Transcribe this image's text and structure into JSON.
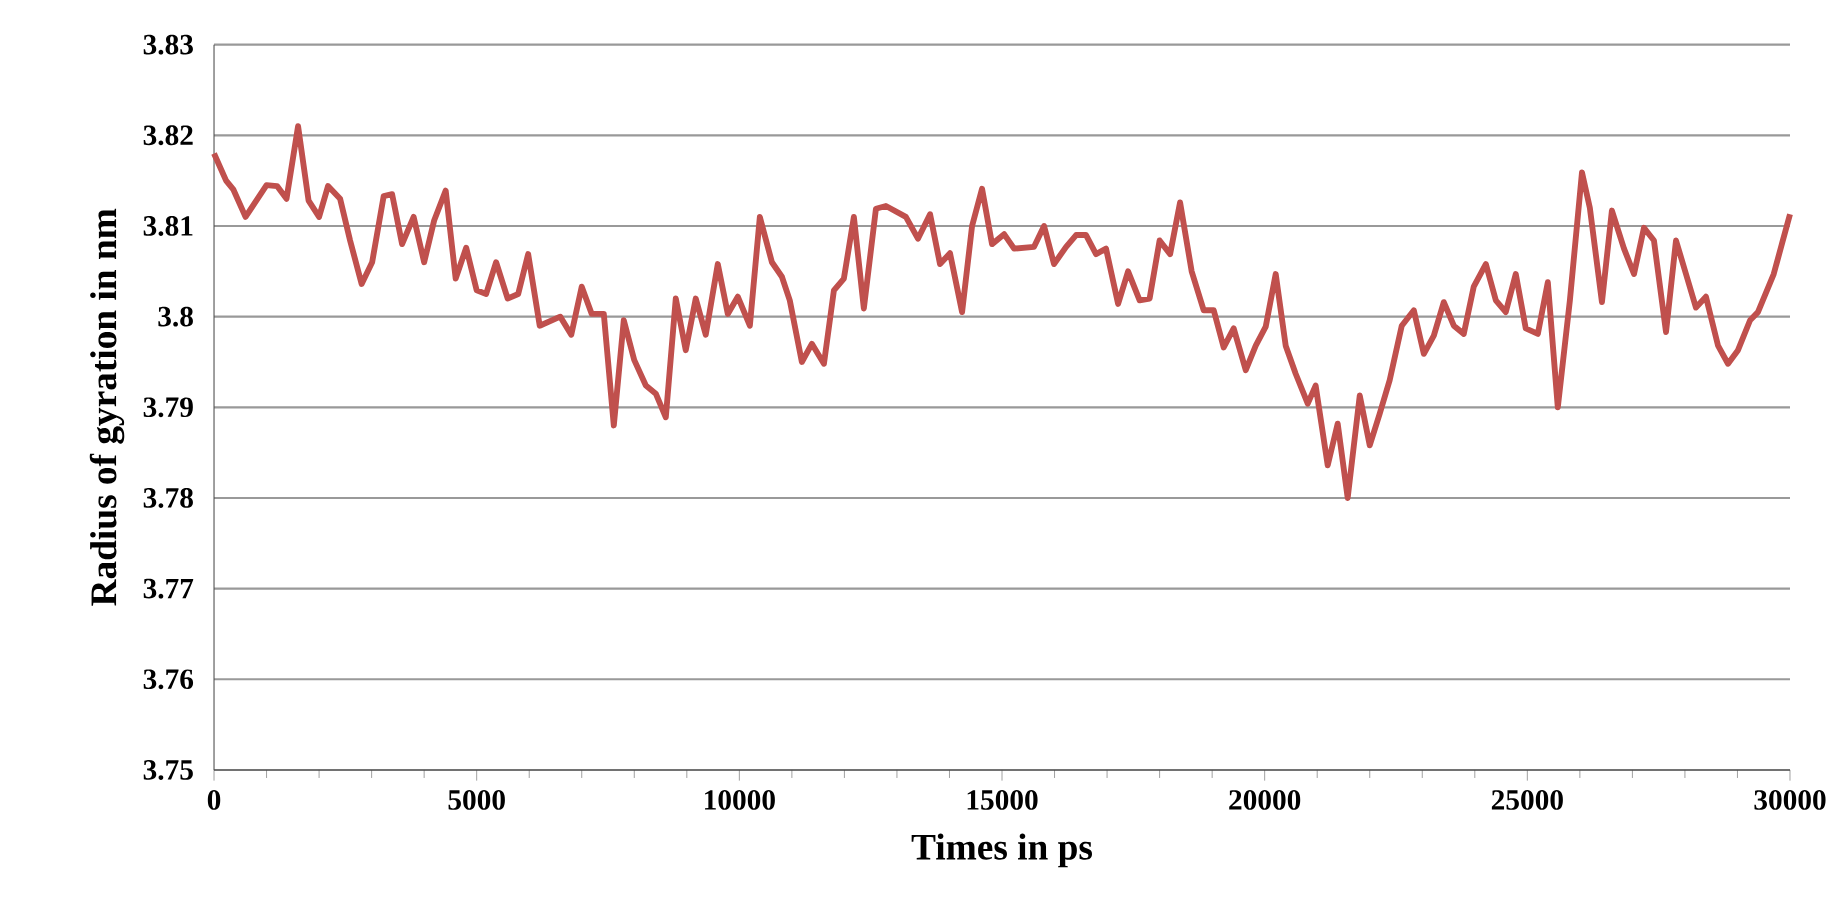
{
  "chart_data": {
    "type": "line",
    "xlabel": "Times in ps",
    "ylabel": "Radius of gyration in nm",
    "x": [
      0,
      230,
      370,
      600,
      1000,
      1200,
      1380,
      1600,
      1800,
      2000,
      2170,
      2400,
      2590,
      2810,
      3010,
      3230,
      3390,
      3580,
      3800,
      4000,
      4190,
      4410,
      4600,
      4800,
      5000,
      5180,
      5370,
      5590,
      5790,
      5980,
      6200,
      6590,
      6800,
      7000,
      7190,
      7420,
      7610,
      7800,
      8000,
      8220,
      8410,
      8600,
      8790,
      8980,
      9170,
      9360,
      9590,
      9780,
      9970,
      10200,
      10390,
      10620,
      10810,
      10960,
      11190,
      11380,
      11610,
      11800,
      11990,
      12180,
      12370,
      12600,
      12790,
      13170,
      13400,
      13630,
      13820,
      14010,
      14240,
      14430,
      14620,
      14810,
      15040,
      15230,
      15610,
      15800,
      15990,
      16220,
      16410,
      16600,
      16790,
      16980,
      17210,
      17400,
      17620,
      17810,
      18000,
      18200,
      18390,
      18610,
      18840,
      19030,
      19220,
      19410,
      19640,
      19830,
      20020,
      20210,
      20400,
      20590,
      20820,
      20970,
      21200,
      21390,
      21580,
      21810,
      22000,
      22190,
      22380,
      22610,
      22840,
      23030,
      23220,
      23410,
      23600,
      23790,
      23980,
      24210,
      24400,
      24590,
      24780,
      24970,
      25200,
      25390,
      25580,
      25810,
      26040,
      26190,
      26420,
      26610,
      26840,
      27030,
      27220,
      27410,
      27640,
      27830,
      28020,
      28210,
      28400,
      28630,
      28820,
      29010,
      29240,
      29390,
      29690,
      30000
    ],
    "series": [
      {
        "color": "#c0504d",
        "values": [
          3.818,
          3.815,
          3.814,
          3.811,
          3.8145,
          3.8144,
          3.813,
          3.821,
          3.8128,
          3.811,
          3.8144,
          3.813,
          3.8084,
          3.8036,
          3.806,
          3.8133,
          3.8135,
          3.808,
          3.811,
          3.806,
          3.8106,
          3.8139,
          3.8042,
          3.8076,
          3.8029,
          3.8025,
          3.806,
          3.802,
          3.8025,
          3.8069,
          3.799,
          3.8,
          3.798,
          3.8033,
          3.8003,
          3.8003,
          3.788,
          3.7996,
          3.7952,
          3.7924,
          3.7915,
          3.7889,
          3.802,
          3.7963,
          3.802,
          3.798,
          3.8058,
          3.8003,
          3.8022,
          3.799,
          3.811,
          3.806,
          3.8044,
          3.8018,
          3.795,
          3.797,
          3.7948,
          3.8029,
          3.8042,
          3.811,
          3.8009,
          3.8119,
          3.8122,
          3.811,
          3.8086,
          3.8113,
          3.8058,
          3.807,
          3.8005,
          3.81,
          3.8141,
          3.808,
          3.8091,
          3.8075,
          3.8077,
          3.81,
          3.8058,
          3.8077,
          3.809,
          3.809,
          3.8069,
          3.8075,
          3.8014,
          3.805,
          3.8018,
          3.802,
          3.8084,
          3.8069,
          3.8126,
          3.805,
          3.8007,
          3.8007,
          3.7966,
          3.7987,
          3.7941,
          3.7968,
          3.7989,
          3.8047,
          3.7968,
          3.7937,
          3.7904,
          3.7924,
          3.7836,
          3.7882,
          3.78,
          3.7913,
          3.7858,
          3.7893,
          3.793,
          3.799,
          3.8007,
          3.7959,
          3.7979,
          3.8016,
          3.799,
          3.7981,
          3.8033,
          3.8058,
          3.8018,
          3.8005,
          3.8047,
          3.7987,
          3.7981,
          3.8038,
          3.79,
          3.8018,
          3.8159,
          3.812,
          3.8016,
          3.8117,
          3.8075,
          3.8047,
          3.8098,
          3.8084,
          3.7983,
          3.8084,
          3.8047,
          3.801,
          3.8022,
          3.7968,
          3.7948,
          3.7963,
          3.7996,
          3.8005,
          3.8047,
          3.8113
        ]
      }
    ],
    "xlim": [
      0,
      30000
    ],
    "xticks": [
      0,
      5000,
      10000,
      15000,
      20000,
      25000,
      30000
    ],
    "ylim": [
      3.75,
      3.83
    ],
    "yticks": [
      3.75,
      3.76,
      3.77,
      3.78,
      3.79,
      3.8,
      3.81,
      3.82,
      3.83
    ],
    "grid": "y",
    "marker": "none",
    "line_style": "solid"
  }
}
